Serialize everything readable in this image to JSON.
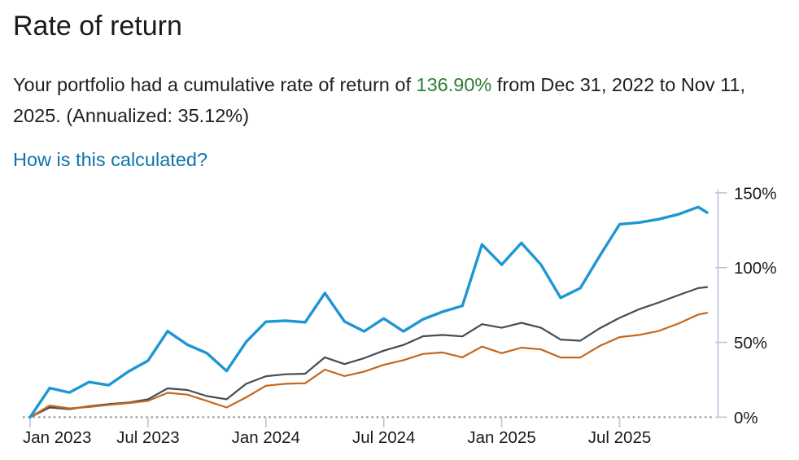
{
  "page": {
    "title": "Rate of return"
  },
  "summary": {
    "prefix": "Your portfolio had a cumulative rate of return of ",
    "highlight": "136.90%",
    "suffix_line1": " from Dec 31, 2022 to Nov 11,",
    "suffix_line2": "2025. (Annualized: 35.12%)",
    "highlight_color": "#2e7d32"
  },
  "link": {
    "label": "How is this calculated?"
  },
  "chart_data": {
    "type": "line",
    "title": "",
    "xlabel": "",
    "ylabel": "",
    "x_desc": "months since Dec 31, 2022 (0 = Dec 31, 2022; last point = Nov 11, 2025)",
    "ylim": [
      0,
      150
    ],
    "grid": false,
    "legend": "none",
    "axis_color": "#b9c4de",
    "baseline_color": "#8f8f8f",
    "x": [
      0,
      1,
      2,
      3,
      4,
      5,
      6,
      7,
      8,
      9,
      10,
      11,
      12,
      13,
      14,
      15,
      16,
      17,
      18,
      19,
      20,
      21,
      22,
      23,
      24,
      25,
      26,
      27,
      28,
      29,
      30,
      31,
      32,
      33,
      34,
      34.45
    ],
    "series": [
      {
        "name": "portfolio",
        "color": "#1e96d2",
        "width": 3.4,
        "z": 3,
        "values": [
          0,
          19.5,
          16.5,
          23.5,
          21.4,
          30.5,
          37.8,
          57.5,
          48.5,
          42.8,
          30.9,
          50.4,
          63.8,
          64.5,
          63.5,
          83,
          64,
          57.4,
          66,
          57.4,
          65.5,
          70.5,
          74.5,
          115.5,
          102,
          116.5,
          102,
          79.8,
          86.3,
          108,
          129,
          130.2,
          132.4,
          135.7,
          140.5,
          136.9
        ]
      },
      {
        "name": "benchmark-1",
        "color": "#414d58",
        "width": 2.2,
        "z": 1,
        "values": [
          0,
          6.5,
          5.4,
          7.3,
          8.7,
          9.8,
          12,
          19.3,
          18.2,
          14.1,
          12,
          22.3,
          27.4,
          28.7,
          29.1,
          40,
          35.5,
          39.5,
          44.5,
          48.3,
          54.1,
          55,
          54,
          62.2,
          59.8,
          63.1,
          59.8,
          51.9,
          51.1,
          59.5,
          66.4,
          72.2,
          76.7,
          81.6,
          86.3,
          87
        ]
      },
      {
        "name": "benchmark-2",
        "color": "#c4671d",
        "width": 2.2,
        "z": 2,
        "values": [
          0,
          7.8,
          5.9,
          6.8,
          8.2,
          9.4,
          10.9,
          16.3,
          15.1,
          10.9,
          6.5,
          13.3,
          21,
          22.3,
          22.7,
          31.8,
          27.5,
          30.5,
          35,
          38.1,
          42.3,
          43.3,
          40,
          47.2,
          42.8,
          46.5,
          45.3,
          39.9,
          39.9,
          47.7,
          53.5,
          55,
          57.7,
          62.6,
          68.6,
          69.8
        ]
      }
    ],
    "xticks": [
      {
        "m": 0,
        "label": "Jan 2023"
      },
      {
        "m": 6,
        "label": "Jul 2023"
      },
      {
        "m": 12,
        "label": "Jan 2024"
      },
      {
        "m": 18,
        "label": "Jul 2024"
      },
      {
        "m": 24,
        "label": "Jan 2025"
      },
      {
        "m": 30,
        "label": "Jul 2025"
      }
    ],
    "yticks": [
      {
        "value": 0,
        "label": "0%"
      },
      {
        "value": 50,
        "label": "50%"
      },
      {
        "value": 100,
        "label": "100%"
      },
      {
        "value": 150,
        "label": "150%"
      }
    ]
  }
}
